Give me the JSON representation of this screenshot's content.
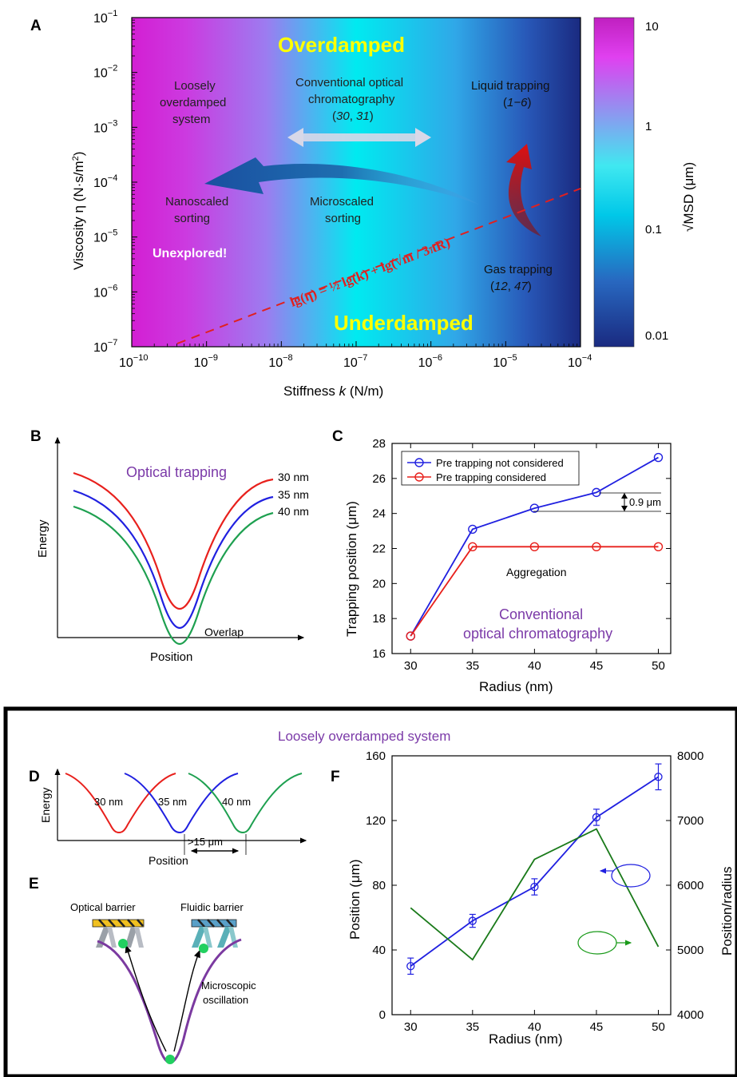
{
  "panelA": {
    "label": "A",
    "regions": {
      "overdamped": "Overdamped",
      "underdamped": "Underdamped",
      "loosely": [
        "Loosely",
        "overdamped",
        "system"
      ],
      "conventional": [
        "Conventional optical",
        "chromatography"
      ],
      "conventional_refs": [
        "30",
        "31"
      ],
      "liquid": "Liquid trapping",
      "liquid_refs": "1−6",
      "gas": "Gas trapping",
      "gas_refs": [
        "12",
        "47"
      ],
      "nanoscaled": [
        "Nanoscaled",
        "sorting"
      ],
      "microscaled": [
        "Microscaled",
        "sorting"
      ],
      "unexplored": "Unexplored!"
    },
    "equation": "lg(η) = ½ lg(k) + lg(√m / 3πR)",
    "xaxis": {
      "label_prefix": "Stiffness ",
      "label_var": "k",
      "label_suffix": " (N/m)",
      "ticks": [
        "10",
        "10",
        "10",
        "10",
        "10",
        "10",
        "10"
      ],
      "exponents": [
        "−10",
        "−9",
        "−8",
        "−7",
        "−6",
        "−5",
        "−4"
      ]
    },
    "yaxis": {
      "label": "Viscosity η (N·s/m",
      "label_sup": "2",
      "ticks": [
        "10",
        "10",
        "10",
        "10",
        "10",
        "10",
        "10"
      ],
      "exponents": [
        "−7",
        "−6",
        "−5",
        "−4",
        "−3",
        "−2",
        "−1"
      ]
    },
    "colorbar": {
      "label": "√MSD (μm)",
      "ticks": [
        "10",
        "1",
        "0.1",
        "0.01"
      ],
      "colors": [
        "#c020c0",
        "#e040f0",
        "#00e8f0",
        "#1a2a80"
      ]
    },
    "background_colors": {
      "left": "#d31fd3",
      "mid": "#00eaf0",
      "right": "#1a2a80"
    }
  },
  "panelB": {
    "label": "B",
    "title": "Optical trapping",
    "xlabel": "Position",
    "ylabel": "Energy",
    "curves": [
      {
        "name": "30 nm",
        "color": "#e8201c"
      },
      {
        "name": "35 nm",
        "color": "#2020e0"
      },
      {
        "name": "40 nm",
        "color": "#1ea050"
      }
    ],
    "annotation": "Overlap"
  },
  "panelD": {
    "label": "D",
    "header": "Loosely overdamped system",
    "xlabel": "Position",
    "ylabel": "Energy",
    "curves": [
      {
        "name": "30 nm",
        "color": "#e8201c"
      },
      {
        "name": "35 nm",
        "color": "#2020e0"
      },
      {
        "name": "40 nm",
        "color": "#1ea050"
      }
    ],
    "spacing": ">15 μm"
  },
  "panelE": {
    "label": "E",
    "optical_barrier": "Optical barrier",
    "fluidic_barrier": "Fluidic barrier",
    "oscillation": [
      "Microscopic",
      "oscillation"
    ]
  },
  "chart_data": [
    {
      "panel": "C",
      "type": "line",
      "title": "Conventional optical chromatography",
      "title_lines": [
        "Conventional",
        "optical chromatography"
      ],
      "xlabel": "Radius (nm)",
      "ylabel": "Trapping position (μm)",
      "x": [
        30,
        35,
        40,
        45,
        50
      ],
      "xlim": [
        28.5,
        51
      ],
      "ylim": [
        16,
        28
      ],
      "yticks": [
        16,
        18,
        20,
        22,
        24,
        26,
        28
      ],
      "series": [
        {
          "name": "Pre trapping not considered",
          "color": "#2020e0",
          "values": [
            17.0,
            23.1,
            24.3,
            25.2,
            27.2
          ]
        },
        {
          "name": "Pre trapping considered",
          "color": "#e8201c",
          "values": [
            17.0,
            22.1,
            22.1,
            22.1,
            22.1
          ]
        }
      ],
      "annotations": {
        "gap": "0.9 μm",
        "aggregation": "Aggregation"
      },
      "legend_position": "top-left"
    },
    {
      "panel": "F",
      "type": "line",
      "xlabel": "Radius (nm)",
      "ylabel_left": "Position (μm)",
      "ylabel_right": "Position/radius",
      "x": [
        30,
        35,
        40,
        45,
        50
      ],
      "xlim": [
        28.5,
        51
      ],
      "ylim_left": [
        0,
        160
      ],
      "ylim_right": [
        4000,
        8000
      ],
      "yticks_left": [
        0,
        40,
        80,
        120,
        160
      ],
      "yticks_right": [
        4000,
        5000,
        6000,
        7000,
        8000
      ],
      "series": [
        {
          "name": "Position",
          "axis": "left",
          "color": "#2020e0",
          "values": [
            30,
            58,
            79,
            122,
            147
          ],
          "errors": [
            5,
            4,
            5,
            5,
            8
          ]
        },
        {
          "name": "Position/radius",
          "axis": "right",
          "color": "#1a7a1a",
          "values": [
            5650,
            4850,
            6400,
            6870,
            5050
          ]
        }
      ]
    }
  ]
}
